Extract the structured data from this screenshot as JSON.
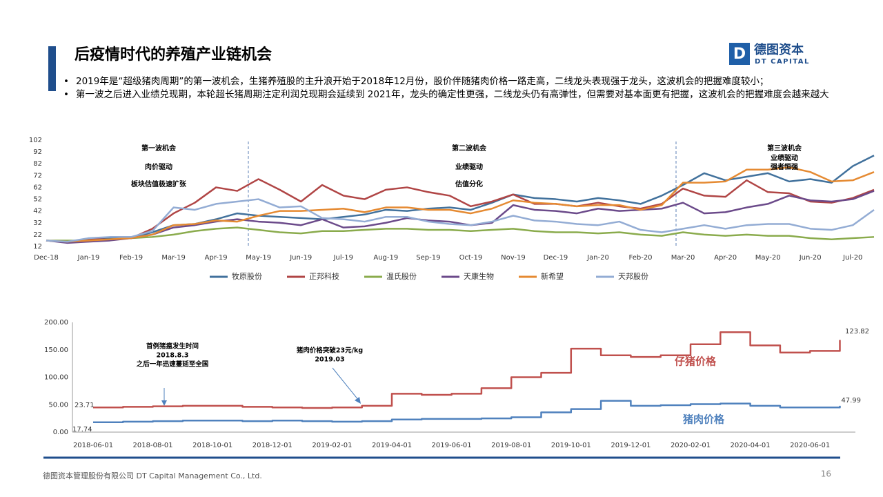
{
  "header": {
    "title": "后疫情时代的养殖产业链机会",
    "logo_cn": "德图资本",
    "logo_en": "DT CAPITAL"
  },
  "bullets": [
    "2019年是“超级猪肉周期”的第一波机会，生猪养殖股的主升浪开始于2018年12月份，股价伴随猪肉价格一路走高，二线龙头表现强于龙头，这波机会的把握难度较小；",
    "第一波之后进入业绩兑现期，本轮超长猪周期注定利润兑现期会延续到 2021年，龙头的确定性更强，二线龙头仍有高弹性，但需要对基本面更有把握，这波机会的把握难度会越来越大"
  ],
  "footer": {
    "company": "德图资本管理股份有限公司  DT Capital Management  Co., Ltd.",
    "page": "16"
  },
  "chart_data": [
    {
      "type": "line",
      "grid": false,
      "categories": [
        "Dec-18",
        null,
        "Jan-19",
        null,
        "Feb-19",
        null,
        "Mar-19",
        null,
        "Apr-19",
        null,
        "May-19",
        null,
        "Jun-19",
        null,
        "Jul-19",
        null,
        "Aug-19",
        null,
        "Sep-19",
        null,
        "Oct-19",
        null,
        "Nov-19",
        null,
        "Dec-19",
        null,
        "Jan-20",
        null,
        "Feb-20",
        null,
        "Mar-20",
        null,
        "Apr-20",
        null,
        "May-20",
        null,
        "Jun-20",
        null,
        "Jul-20",
        null
      ],
      "ylim": [
        12,
        102
      ],
      "yticks": [
        12,
        22,
        32,
        42,
        52,
        62,
        72,
        82,
        92,
        102
      ],
      "series": [
        {
          "name": "牧原股份",
          "color": "#41719c",
          "values": [
            17,
            16,
            18,
            19,
            19,
            24,
            30,
            31,
            35,
            40,
            38,
            37,
            36,
            35,
            37,
            39,
            43,
            42,
            44,
            45,
            43,
            49,
            56,
            53,
            52,
            50,
            53,
            51,
            48,
            55,
            64,
            74,
            68,
            71,
            74,
            67,
            69,
            66,
            80,
            89
          ]
        },
        {
          "name": "正邦科技",
          "color": "#b04545",
          "values": [
            17,
            16,
            18,
            18,
            19,
            27,
            40,
            49,
            62,
            59,
            69,
            60,
            50,
            64,
            55,
            52,
            60,
            62,
            58,
            55,
            46,
            50,
            56,
            48,
            48,
            46,
            49,
            46,
            44,
            48,
            61,
            55,
            54,
            68,
            58,
            57,
            50,
            49,
            53,
            60
          ]
        },
        {
          "name": "温氏股份",
          "color": "#8aab4c",
          "values": [
            17,
            17,
            17,
            18,
            19,
            20,
            22,
            25,
            27,
            28,
            26,
            24,
            23,
            25,
            25,
            26,
            27,
            27,
            26,
            26,
            25,
            26,
            27,
            25,
            24,
            24,
            23,
            24,
            22,
            21,
            24,
            22,
            21,
            22,
            21,
            21,
            19,
            18,
            19,
            20
          ]
        },
        {
          "name": "天康生物",
          "color": "#6b4a8a",
          "values": [
            17,
            15,
            16,
            17,
            19,
            22,
            28,
            30,
            33,
            35,
            33,
            32,
            30,
            35,
            28,
            29,
            32,
            36,
            34,
            33,
            30,
            32,
            47,
            43,
            42,
            40,
            44,
            42,
            43,
            44,
            49,
            40,
            41,
            45,
            48,
            55,
            51,
            50,
            52,
            59
          ]
        },
        {
          "name": "新希望",
          "color": "#e58a32",
          "values": [
            17,
            16,
            17,
            18,
            19,
            22,
            30,
            31,
            34,
            33,
            38,
            42,
            42,
            43,
            44,
            41,
            45,
            45,
            43,
            43,
            40,
            44,
            51,
            49,
            48,
            46,
            47,
            47,
            43,
            47,
            66,
            66,
            67,
            77,
            77,
            79,
            75,
            67,
            68,
            75
          ]
        },
        {
          "name": "天邦股份",
          "color": "#93acd4",
          "values": [
            17,
            16,
            19,
            20,
            20,
            25,
            45,
            43,
            48,
            50,
            52,
            45,
            46,
            36,
            35,
            33,
            37,
            37,
            33,
            31,
            30,
            33,
            38,
            34,
            33,
            31,
            30,
            33,
            26,
            24,
            27,
            30,
            27,
            30,
            31,
            31,
            27,
            26,
            30,
            43
          ]
        }
      ],
      "annotations": [
        [
          "第一波机会",
          "肉价驱动",
          "板块估值极速扩张"
        ],
        [
          "第二波机会",
          "业绩驱动",
          "估值分化"
        ],
        [
          "第三波机会",
          "业绩驱动",
          "强者恒强"
        ]
      ]
    },
    {
      "type": "line",
      "grid": false,
      "categories": [
        "2018-06-01",
        null,
        "2018-08-01",
        null,
        "2018-10-01",
        null,
        "2018-12-01",
        null,
        "2019-02-01",
        null,
        "2019-04-01",
        null,
        "2019-06-01",
        null,
        "2019-08-01",
        null,
        "2019-10-01",
        null,
        "2019-12-01",
        null,
        "2020-02-01",
        null,
        "2020-04-01",
        null,
        "2020-06-01",
        null
      ],
      "ylim": [
        0,
        200
      ],
      "yticks": [
        {
          "value": 0,
          "label": "0.00"
        },
        {
          "value": 50,
          "label": "50.00"
        },
        {
          "value": 100,
          "label": "100.00"
        },
        {
          "value": 150,
          "label": "150.00"
        },
        {
          "value": 200,
          "label": "200.00"
        }
      ],
      "series": [
        {
          "name": "仔猪价格",
          "color": "#c0504d",
          "values": [
            45,
            46,
            47,
            48,
            48,
            46,
            45,
            44,
            45,
            48,
            70,
            68,
            70,
            80,
            100,
            108,
            152,
            140,
            137,
            140,
            160,
            182,
            158,
            145,
            148,
            168
          ]
        },
        {
          "name": "猪肉价格",
          "color": "#4f81bd",
          "values": [
            18,
            19,
            20,
            21,
            21,
            20,
            21,
            20,
            19,
            20,
            23,
            24,
            24,
            25,
            27,
            36,
            42,
            57,
            48,
            49,
            51,
            52,
            48,
            45,
            45,
            48
          ]
        }
      ],
      "point_labels": [
        "23.71",
        "17.74",
        "123.82",
        "47.99"
      ],
      "annotations": [
        [
          "首例猪瘟发生时间",
          "2018.8.3",
          "之后一年迅速蔓延至全国"
        ],
        [
          "猪肉价格突破23元/kg",
          "2019.03"
        ]
      ]
    }
  ]
}
